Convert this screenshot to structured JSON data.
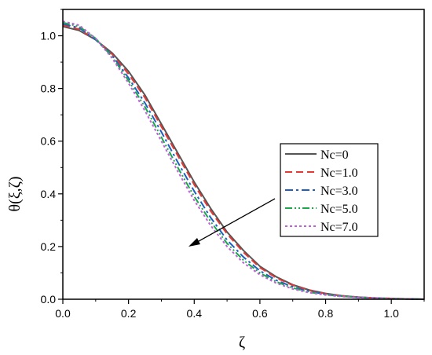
{
  "chart_data": {
    "type": "line",
    "xlabel": "ζ",
    "ylabel": "θ(ξ,ζ)",
    "xlim": [
      0.0,
      1.1
    ],
    "ylim": [
      0.0,
      1.1
    ],
    "xticks": [
      "0.0",
      "0.2",
      "0.4",
      "0.6",
      "0.8",
      "1.0"
    ],
    "yticks": [
      "0.0",
      "0.2",
      "0.4",
      "0.6",
      "0.8",
      "1.0"
    ],
    "grid": false,
    "legend_position": "right",
    "annotation": "arrow pointing toward increasing Nc",
    "x": [
      0.0,
      0.05,
      0.1,
      0.15,
      0.2,
      0.25,
      0.3,
      0.35,
      0.4,
      0.45,
      0.5,
      0.55,
      0.6,
      0.65,
      0.7,
      0.75,
      0.8,
      0.85,
      0.9,
      0.95,
      1.0,
      1.05,
      1.1
    ],
    "series": [
      {
        "name": "Nc=0",
        "color": "#555555",
        "dash": "solid",
        "values": [
          1.035,
          1.02,
          0.985,
          0.935,
          0.865,
          0.775,
          0.665,
          0.555,
          0.445,
          0.345,
          0.255,
          0.185,
          0.125,
          0.085,
          0.055,
          0.035,
          0.022,
          0.013,
          0.008,
          0.005,
          0.003,
          0.001,
          0.0
        ]
      },
      {
        "name": "Nc=1.0",
        "color": "#e53935",
        "dash": "dashed",
        "values": [
          1.04,
          1.025,
          0.985,
          0.93,
          0.855,
          0.765,
          0.655,
          0.545,
          0.435,
          0.335,
          0.248,
          0.178,
          0.12,
          0.081,
          0.053,
          0.034,
          0.021,
          0.013,
          0.008,
          0.005,
          0.003,
          0.001,
          0.0
        ]
      },
      {
        "name": "Nc=3.0",
        "color": "#1f5fbf",
        "dash": "dashdot",
        "values": [
          1.045,
          1.03,
          0.985,
          0.925,
          0.84,
          0.745,
          0.635,
          0.52,
          0.41,
          0.31,
          0.225,
          0.16,
          0.108,
          0.072,
          0.047,
          0.03,
          0.019,
          0.012,
          0.007,
          0.004,
          0.002,
          0.001,
          0.0
        ]
      },
      {
        "name": "Nc=5.0",
        "color": "#1aa84a",
        "dash": "dashdotdot",
        "values": [
          1.05,
          1.035,
          0.99,
          0.92,
          0.83,
          0.73,
          0.615,
          0.5,
          0.39,
          0.295,
          0.212,
          0.148,
          0.1,
          0.066,
          0.043,
          0.027,
          0.017,
          0.011,
          0.007,
          0.004,
          0.002,
          0.001,
          0.0
        ]
      },
      {
        "name": "Nc=7.0",
        "color": "#c060d8",
        "dash": "dotted",
        "values": [
          1.055,
          1.04,
          0.99,
          0.915,
          0.82,
          0.715,
          0.6,
          0.485,
          0.375,
          0.28,
          0.2,
          0.138,
          0.093,
          0.061,
          0.039,
          0.025,
          0.016,
          0.01,
          0.006,
          0.004,
          0.002,
          0.001,
          0.0
        ]
      }
    ]
  }
}
